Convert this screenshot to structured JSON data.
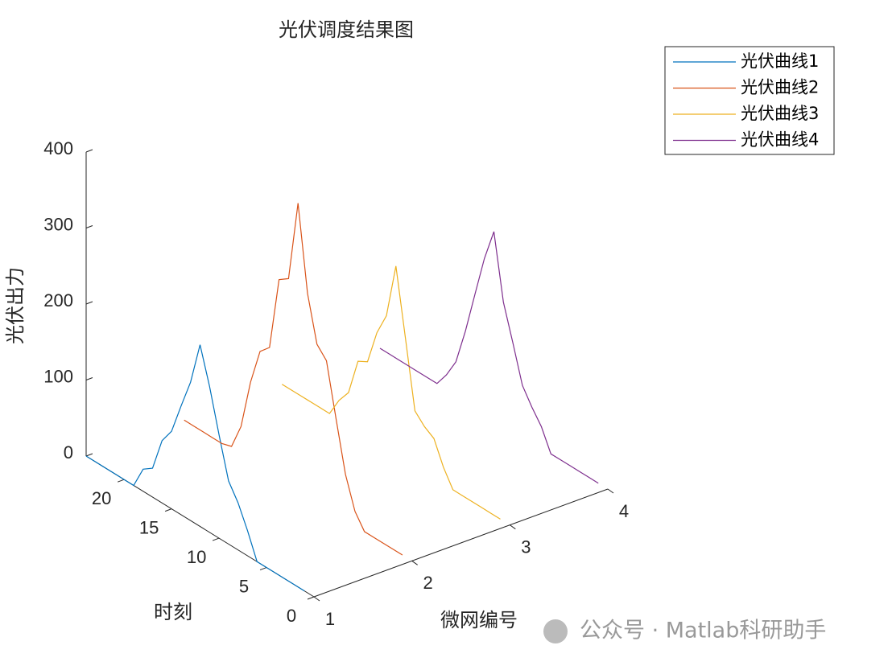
{
  "chart_data": {
    "type": "line3d",
    "title": "光伏调度结果图",
    "xlabel": "微网编号",
    "ylabel": "时刻",
    "zlabel": "光伏出力",
    "xlim": [
      1,
      4
    ],
    "xticks": [
      1,
      2,
      3,
      4
    ],
    "ylim": [
      0,
      24
    ],
    "yticks": [
      0,
      5,
      10,
      15,
      20
    ],
    "zlim": [
      0,
      400
    ],
    "zticks": [
      0,
      100,
      200,
      300,
      400
    ],
    "y": [
      1,
      2,
      3,
      4,
      5,
      6,
      7,
      8,
      9,
      10,
      11,
      12,
      13,
      14,
      15,
      16,
      17,
      18,
      19,
      20,
      21,
      22,
      23,
      24
    ],
    "legend": "upper-right",
    "series": [
      {
        "name": "光伏曲线1",
        "color": "#0072BD",
        "x": 1,
        "values": [
          0,
          0,
          0,
          0,
          0,
          0,
          33,
          62,
          83,
          136,
          192,
          239,
          182,
          143,
          102,
          82,
          38,
          29,
          0,
          0,
          0,
          0,
          0,
          0
        ]
      },
      {
        "name": "光伏曲线2",
        "color": "#D95319",
        "x": 2,
        "values": [
          0,
          0,
          0,
          0,
          0,
          19,
          60,
          126,
          194,
          208,
          267,
          378,
          271,
          262,
          165,
          152,
          104,
          38,
          4,
          0,
          0,
          0,
          0,
          0
        ]
      },
      {
        "name": "光伏曲线3",
        "color": "#EDB120",
        "x": 3,
        "values": [
          0,
          0,
          0,
          0,
          0,
          0,
          22,
          52,
          60,
          73,
          161,
          248,
          175,
          145,
          99,
          92,
          43,
          25,
          0,
          0,
          0,
          0,
          0,
          0
        ]
      },
      {
        "name": "光伏曲线4",
        "color": "#7E2F8E",
        "x": 4,
        "values": [
          0,
          0,
          0,
          0,
          0,
          0,
          28,
          46,
          67,
          115,
          161,
          246,
          203,
          148,
          92,
          44,
          19,
          0,
          0,
          0,
          0,
          0,
          0,
          0
        ]
      }
    ]
  },
  "watermark": "公众号 · Matlab科研助手"
}
